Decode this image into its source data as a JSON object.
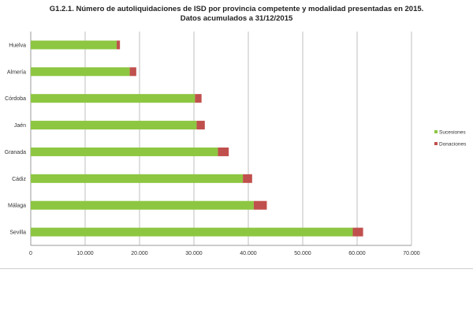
{
  "chart_data": {
    "type": "bar",
    "orientation": "horizontal",
    "stacked": true,
    "title": "G1.2.1. Número de autoliquidaciones de ISD por provincia competente y modalidad presentadas en 2015.",
    "subtitle": "Datos acumulados a 31/12/2015",
    "xlabel": "",
    "ylabel": "",
    "categories": [
      "Huelva",
      "Almería",
      "Córdoba",
      "Jaén",
      "Granada",
      "Cádiz",
      "Málaga",
      "Sevilla"
    ],
    "series": [
      {
        "name": "Sucesiones",
        "color": "#8dc641",
        "values": [
          15800,
          18200,
          30200,
          30500,
          34400,
          39000,
          41000,
          59200
        ]
      },
      {
        "name": "Donaciones",
        "color": "#c0504d",
        "values": [
          600,
          1200,
          1200,
          1500,
          2000,
          1700,
          2400,
          1900
        ]
      }
    ],
    "xlim": [
      0,
      70000
    ],
    "xticks": [
      0,
      10000,
      20000,
      30000,
      40000,
      50000,
      60000,
      70000
    ],
    "xtick_labels": [
      "0",
      "10.000",
      "20.000",
      "30.000",
      "40.000",
      "50.000",
      "60.000",
      "70.000"
    ],
    "grid": true,
    "legend_position": "right"
  }
}
